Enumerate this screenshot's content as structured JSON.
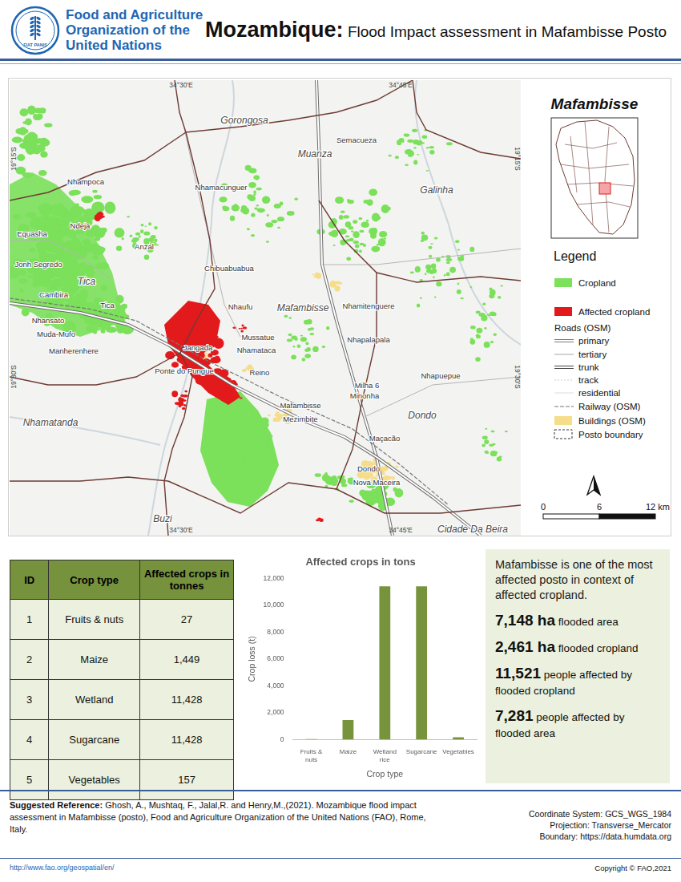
{
  "header": {
    "org_name": [
      "Food and Agriculture",
      "Organization of the",
      "United Nations"
    ],
    "logo_text": "FIAT PANIS",
    "title_bold": "Mozambique:",
    "title_rest": "Flood Impact assessment in Mafambisse Posto"
  },
  "map": {
    "coordinate_labels": [
      "34°30'E",
      "34°45'E",
      "19°15'S",
      "19°30'S"
    ],
    "district_labels": [
      "Gorongosa",
      "Muanza",
      "Galinha",
      "Tica",
      "Mafambisse",
      "Dondo",
      "Nhamatanda",
      "Buzi",
      "Cidade Da Beira"
    ],
    "place_labels": [
      "Semacueza",
      "Nhampoca",
      "Nhamacunguer",
      "Equasha",
      "Ndeja",
      "Anzal",
      "Jonh Segredo",
      "Chibuabuabua",
      "Cambira",
      "Tica",
      "Nhansato",
      "Muda-Mufo",
      "Nhaufu",
      "Nhamitenguere",
      "Manherenhere",
      "Mussatue",
      "Jangada",
      "Nhamataca",
      "Nhapalapala",
      "Ponte do Pungue",
      "Reino",
      "Milha 6",
      "Nhapuepue",
      "Minonha",
      "Mafambisse",
      "Mezimbite",
      "Maçacão",
      "Dondo",
      "Nova Maceira"
    ],
    "inset_title": "Mafambisse",
    "legend": {
      "title": "Legend",
      "items": [
        "Cropland",
        "Affected cropland"
      ],
      "roads_title": "Roads (OSM)",
      "roads": [
        "primary",
        "tertiary",
        "trunk",
        "track",
        "residential"
      ],
      "other": [
        "Railway (OSM)",
        "Buildings (OSM)",
        "Posto boundary"
      ]
    },
    "scale_labels": [
      "0",
      "6",
      "12 km"
    ]
  },
  "table": {
    "header": [
      "ID",
      "Crop type",
      "Affected crops in tonnes"
    ],
    "rows": [
      [
        "1",
        "Fruits & nuts",
        "27"
      ],
      [
        "2",
        "Maize",
        "1,449"
      ],
      [
        "3",
        "Wetland",
        "11,428"
      ],
      [
        "4",
        "Sugarcane",
        "11,428"
      ],
      [
        "5",
        "Vegetables",
        "157"
      ]
    ]
  },
  "chart_data": {
    "type": "bar",
    "title": "Affected crops in tons",
    "x_label": "Crop type",
    "y_label": "Crop loss (t)",
    "categories": [
      "Fruits & nuts",
      "Maize",
      "Wetland rice",
      "Sugarcane",
      "Vegetables"
    ],
    "values": [
      27,
      1449,
      11428,
      11428,
      157
    ],
    "color": "#77933c",
    "ylim": [
      0,
      12000
    ],
    "yticks": [
      0,
      {
        "value": 2000,
        "label": "2,000"
      },
      {
        "value": 4000,
        "label": "4,000"
      },
      {
        "value": 6000,
        "label": "6,000"
      },
      {
        "value": 8000,
        "label": "8,000"
      },
      {
        "value": 10000,
        "label": "10,000"
      },
      {
        "value": 12000,
        "label": "12,000"
      }
    ],
    "grid": false
  },
  "summary": {
    "intro": "Mafambisse is one of the most affected posto in context of affected cropland.",
    "stats": [
      {
        "value": "7,148 ha",
        "text": "flooded area"
      },
      {
        "value": "2,461 ha",
        "text": "flooded cropland"
      },
      {
        "value": "11,521",
        "text": "people affected by flooded cropland"
      },
      {
        "value": "7,281",
        "text": "people affected by flooded area"
      }
    ]
  },
  "footer": {
    "reference_label": "Suggested Reference:",
    "reference_text": "Ghosh, A., Mushtaq, F., Jalal,R. and Henry,M.,(2021). Mozambique flood impact assessment in Mafambisse (posto), Food and Agriculture Organization of the United Nations (FAO), Rome, Italy.",
    "map_info": [
      "Coordinate System: GCS_WGS_1984",
      "Projection: Transverse_Mercator",
      "Boundary: https://data.humdata.org"
    ],
    "url": "http://www.fao.org/geospatial/en/",
    "copyright": "Copyright © FAO,2021"
  }
}
